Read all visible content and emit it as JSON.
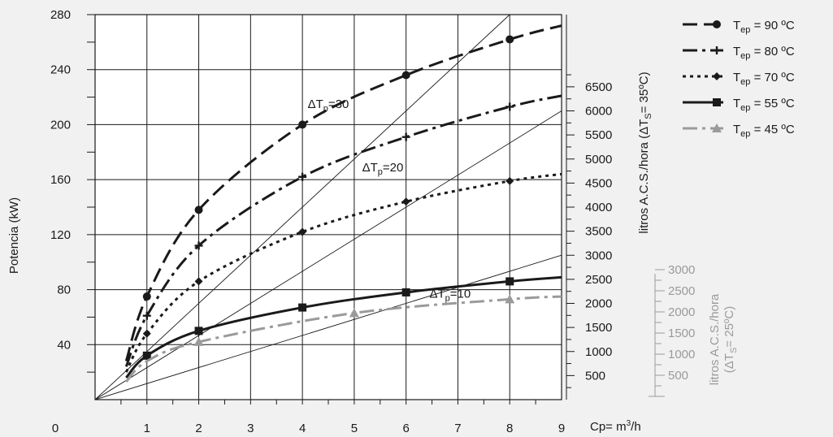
{
  "chart_data": {
    "type": "line",
    "ylabel": "Potencia (kW)",
    "origin_label": "0",
    "x_unit": "Cp= m",
    "x_unit_sup": "3",
    "x_unit_tail": "/h",
    "xlim": [
      0,
      9
    ],
    "ylim": [
      0,
      280
    ],
    "x_ticks": [
      1,
      2,
      3,
      4,
      5,
      6,
      7,
      8,
      9
    ],
    "y_ticks": [
      40,
      80,
      120,
      160,
      200,
      240,
      280
    ],
    "right_axis": {
      "label_pre": "litros A.C.S./hora (ΔT",
      "label_sub": "S",
      "label_post": "= 35ºC)",
      "ticks": [
        500,
        1000,
        1500,
        2000,
        2500,
        3000,
        3500,
        4000,
        4500,
        5000,
        5500,
        6000,
        6500
      ]
    },
    "right_axis_2": {
      "label_line1": "litros A.C.S./hora",
      "label_line2_pre": "(ΔT",
      "label_line2_sub": "S",
      "label_line2_post": "= 25ºC)",
      "ticks": [
        500,
        1000,
        1500,
        2000,
        2500,
        3000
      ]
    },
    "dt_lines": [
      {
        "label": "ΔT",
        "sub": "p",
        "value": "=30",
        "slope": 35
      },
      {
        "label": "ΔT",
        "sub": "p",
        "value": "=20",
        "slope": 23.33
      },
      {
        "label": "ΔT",
        "sub": "p",
        "value": "=10",
        "slope": 11.67
      }
    ],
    "series": [
      {
        "name_pre": "T",
        "name_sub": "ep",
        "name_post": " = 90 ºC",
        "color": "#1a1a1a",
        "dash": "dash",
        "marker": "circle",
        "x": [
          0.6,
          1,
          2,
          4,
          6,
          8,
          9
        ],
        "y": [
          28,
          75,
          138,
          200,
          236,
          262,
          272
        ],
        "marker_x": [
          1,
          2,
          4,
          6,
          8
        ]
      },
      {
        "name_pre": "T",
        "name_sub": "ep",
        "name_post": " = 80 ºC",
        "color": "#1a1a1a",
        "dash": "dashdot",
        "marker": "plus",
        "x": [
          0.6,
          1,
          2,
          4,
          6,
          8,
          9
        ],
        "y": [
          24,
          61,
          112,
          162,
          191,
          213,
          221
        ],
        "marker_x": [
          1,
          2,
          4,
          6,
          8
        ]
      },
      {
        "name_pre": "T",
        "name_sub": "ep",
        "name_post": " = 70 ºC",
        "color": "#1a1a1a",
        "dash": "dot",
        "marker": "diamond",
        "x": [
          0.6,
          1,
          2,
          4,
          6,
          8,
          9
        ],
        "y": [
          20,
          48,
          86,
          122,
          144,
          159,
          164
        ],
        "marker_x": [
          1,
          2,
          4,
          6,
          8
        ]
      },
      {
        "name_pre": "T",
        "name_sub": "ep",
        "name_post": " = 55 ºC",
        "color": "#1a1a1a",
        "dash": "solid",
        "marker": "square",
        "x": [
          0.6,
          1,
          2,
          4,
          6,
          8,
          9
        ],
        "y": [
          16,
          32,
          50,
          67,
          78,
          86,
          89
        ],
        "marker_x": [
          1,
          2,
          4,
          6,
          8
        ]
      },
      {
        "name_pre": "T",
        "name_sub": "ep",
        "name_post": " = 45 ºC",
        "color": "#9a9a9a",
        "dash": "dashdot",
        "marker": "triangle",
        "x": [
          0.6,
          1,
          2,
          5,
          8,
          9
        ],
        "y": [
          13,
          28,
          42,
          63,
          73,
          75
        ],
        "marker_x": [
          2,
          5,
          8
        ]
      }
    ],
    "grid": true,
    "legend": "top-right"
  }
}
